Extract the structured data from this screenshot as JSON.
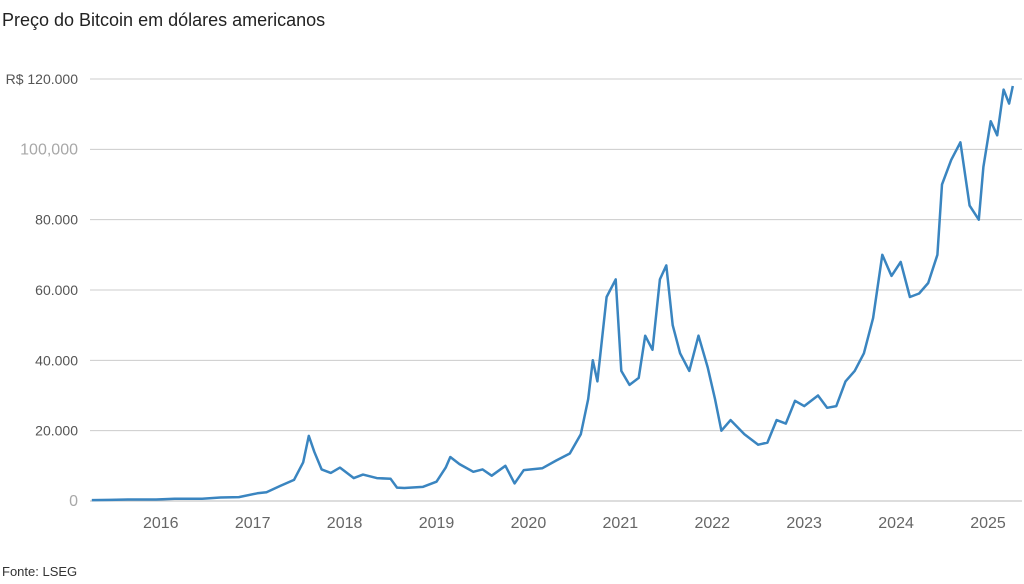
{
  "title": "Preço do Bitcoin em dólares americanos",
  "source": "Fonte: LSEG",
  "chart_data": {
    "type": "line",
    "title": "Preço do Bitcoin em dólares americanos",
    "xlabel": "",
    "ylabel": "",
    "ylim": [
      0,
      120000
    ],
    "xlim": [
      2015.58,
      2025.72
    ],
    "grid": "horizontal",
    "y_ticks": [
      {
        "value": 0,
        "label": "0"
      },
      {
        "value": 20000,
        "label": "20.000"
      },
      {
        "value": 40000,
        "label": "40.000"
      },
      {
        "value": 60000,
        "label": "60.000"
      },
      {
        "value": 80000,
        "label": "80.000"
      },
      {
        "value": 100000,
        "label": "100,000"
      },
      {
        "value": 120000,
        "label": "R$ 120.000"
      }
    ],
    "x_ticks": [
      "2016",
      "2017",
      "2018",
      "2019",
      "2020",
      "2021",
      "2022",
      "2023",
      "2024",
      "2025"
    ],
    "line_color": "#3a85c0",
    "series": [
      {
        "values": [
          [
            2015.6,
            250
          ],
          [
            2015.8,
            300
          ],
          [
            2016.0,
            430
          ],
          [
            2016.3,
            430
          ],
          [
            2016.5,
            650
          ],
          [
            2016.8,
            650
          ],
          [
            2017.0,
            1000
          ],
          [
            2017.2,
            1100
          ],
          [
            2017.4,
            2200
          ],
          [
            2017.5,
            2500
          ],
          [
            2017.65,
            4300
          ],
          [
            2017.8,
            6000
          ],
          [
            2017.9,
            11000
          ],
          [
            2017.96,
            18500
          ],
          [
            2018.02,
            14000
          ],
          [
            2018.1,
            9000
          ],
          [
            2018.2,
            8000
          ],
          [
            2018.3,
            9500
          ],
          [
            2018.45,
            6500
          ],
          [
            2018.55,
            7500
          ],
          [
            2018.7,
            6500
          ],
          [
            2018.85,
            6300
          ],
          [
            2018.92,
            3800
          ],
          [
            2019.0,
            3700
          ],
          [
            2019.2,
            4000
          ],
          [
            2019.35,
            5500
          ],
          [
            2019.45,
            9500
          ],
          [
            2019.5,
            12500
          ],
          [
            2019.6,
            10500
          ],
          [
            2019.75,
            8300
          ],
          [
            2019.85,
            9000
          ],
          [
            2019.95,
            7200
          ],
          [
            2020.1,
            10000
          ],
          [
            2020.2,
            5000
          ],
          [
            2020.3,
            8800
          ],
          [
            2020.5,
            9300
          ],
          [
            2020.65,
            11500
          ],
          [
            2020.8,
            13500
          ],
          [
            2020.92,
            19000
          ],
          [
            2021.0,
            29000
          ],
          [
            2021.05,
            40000
          ],
          [
            2021.1,
            34000
          ],
          [
            2021.2,
            58000
          ],
          [
            2021.3,
            63000
          ],
          [
            2021.36,
            37000
          ],
          [
            2021.45,
            33000
          ],
          [
            2021.55,
            35000
          ],
          [
            2021.62,
            47000
          ],
          [
            2021.7,
            43000
          ],
          [
            2021.78,
            63000
          ],
          [
            2021.85,
            67000
          ],
          [
            2021.92,
            50000
          ],
          [
            2022.0,
            42000
          ],
          [
            2022.1,
            37000
          ],
          [
            2022.2,
            47000
          ],
          [
            2022.3,
            38000
          ],
          [
            2022.38,
            29000
          ],
          [
            2022.45,
            20000
          ],
          [
            2022.55,
            23000
          ],
          [
            2022.7,
            19000
          ],
          [
            2022.85,
            16000
          ],
          [
            2022.95,
            16600
          ],
          [
            2023.05,
            23000
          ],
          [
            2023.15,
            22000
          ],
          [
            2023.25,
            28500
          ],
          [
            2023.35,
            27000
          ],
          [
            2023.5,
            30000
          ],
          [
            2023.6,
            26500
          ],
          [
            2023.7,
            27000
          ],
          [
            2023.8,
            34000
          ],
          [
            2023.9,
            37000
          ],
          [
            2024.0,
            42000
          ],
          [
            2024.1,
            52000
          ],
          [
            2024.2,
            70000
          ],
          [
            2024.3,
            64000
          ],
          [
            2024.4,
            68000
          ],
          [
            2024.5,
            58000
          ],
          [
            2024.6,
            59000
          ],
          [
            2024.7,
            62000
          ],
          [
            2024.8,
            70000
          ],
          [
            2024.85,
            90000
          ],
          [
            2024.95,
            97000
          ],
          [
            2025.05,
            102000
          ],
          [
            2025.15,
            84000
          ],
          [
            2025.25,
            80000
          ],
          [
            2025.3,
            95000
          ],
          [
            2025.38,
            108000
          ],
          [
            2025.45,
            104000
          ],
          [
            2025.52,
            117000
          ],
          [
            2025.58,
            113000
          ],
          [
            2025.62,
            118000
          ]
        ]
      }
    ]
  }
}
